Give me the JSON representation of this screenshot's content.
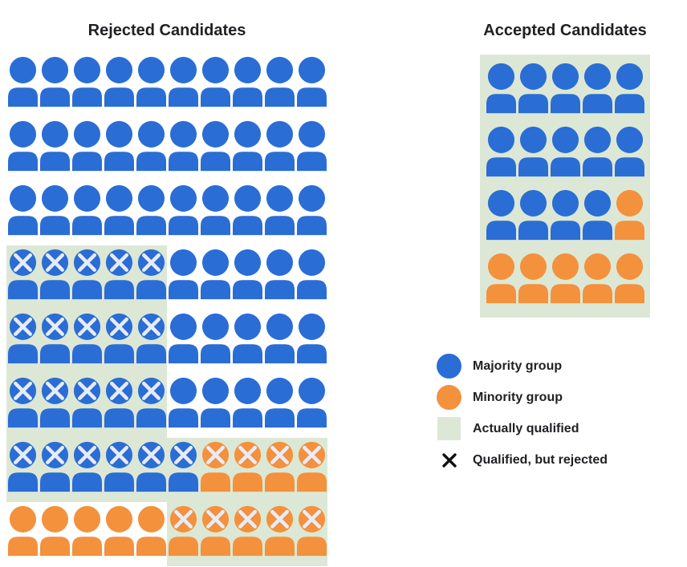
{
  "colors": {
    "majority": "#2a6dd5",
    "minority": "#f3913d",
    "qualified": "#dce8d5",
    "x_on_icon": "#e8ebf8",
    "x_legend": "#111111",
    "text": "#202124"
  },
  "legend": {
    "items": [
      {
        "id": "majority",
        "label": "Majority group"
      },
      {
        "id": "minority",
        "label": "Minority group"
      },
      {
        "id": "qualified",
        "label": "Actually qualified"
      },
      {
        "id": "qualified_rejected",
        "label": "Qualified, but rejected"
      }
    ]
  },
  "chart_data": {
    "type": "icon_array",
    "description": "Pictograph (waffle/icon-array) comparison of rejected vs accepted candidates by group, qualification, and wrongful rejection.",
    "legend": [
      "Majority group",
      "Minority group",
      "Actually qualified",
      "Qualified, but rejected"
    ],
    "cell_codes": {
      "b": "majority group person (blue)",
      "o": "minority group person (orange)",
      "x": "X mark overlay = qualified, but rejected",
      "g": "green cell background = actually qualified"
    },
    "panels": [
      {
        "title": "Rejected Candidates",
        "columns": 10,
        "rows": 8,
        "totals": {
          "candidates": 80,
          "majority": 66,
          "minority": 14,
          "actually_qualified": 30,
          "qualified_but_rejected": 30,
          "qualified_but_rejected_majority": 21,
          "qualified_but_rejected_minority": 9
        },
        "cells": [
          [
            "b",
            "b",
            "b",
            "b",
            "b",
            "b",
            "b",
            "b",
            "b",
            "b"
          ],
          [
            "b",
            "b",
            "b",
            "b",
            "b",
            "b",
            "b",
            "b",
            "b",
            "b"
          ],
          [
            "b",
            "b",
            "b",
            "b",
            "b",
            "b",
            "b",
            "b",
            "b",
            "b"
          ],
          [
            "bxg",
            "bxg",
            "bxg",
            "bxg",
            "bxg",
            "b",
            "b",
            "b",
            "b",
            "b"
          ],
          [
            "bxg",
            "bxg",
            "bxg",
            "bxg",
            "bxg",
            "b",
            "b",
            "b",
            "b",
            "b"
          ],
          [
            "bxg",
            "bxg",
            "bxg",
            "bxg",
            "bxg",
            "b",
            "b",
            "b",
            "b",
            "b"
          ],
          [
            "bxg",
            "bxg",
            "bxg",
            "bxg",
            "bxg",
            "bxg",
            "oxg",
            "oxg",
            "oxg",
            "oxg"
          ],
          [
            "o",
            "o",
            "o",
            "o",
            "o",
            "oxg",
            "oxg",
            "oxg",
            "oxg",
            "oxg"
          ]
        ]
      },
      {
        "title": "Accepted Candidates",
        "columns": 5,
        "rows": 4,
        "all_actually_qualified": true,
        "totals": {
          "candidates": 20,
          "majority": 14,
          "minority": 6
        },
        "cells": [
          [
            "b",
            "b",
            "b",
            "b",
            "b"
          ],
          [
            "b",
            "b",
            "b",
            "b",
            "b"
          ],
          [
            "b",
            "b",
            "b",
            "b",
            "o"
          ],
          [
            "o",
            "o",
            "o",
            "o",
            "o"
          ]
        ]
      }
    ]
  }
}
